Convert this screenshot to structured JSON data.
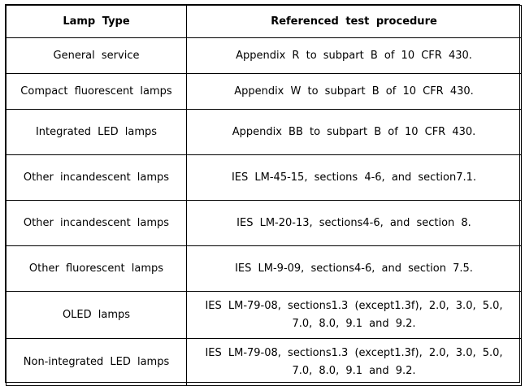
{
  "table": {
    "headers": [
      "Lamp Type",
      "Referenced test procedure"
    ],
    "rows": [
      {
        "lamp_type": "General service",
        "procedure": "Appendix R to subpart B of 10 CFR 430."
      },
      {
        "lamp_type": "Compact fluorescent lamps",
        "procedure": "Appendix W to subpart B of 10 CFR 430."
      },
      {
        "lamp_type": "Integrated LED lamps",
        "procedure": "Appendix BB to subpart B of 10 CFR 430."
      },
      {
        "lamp_type": "Other incandescent lamps",
        "procedure": "IES LM-45-15, sections 4-6, and section7.1."
      },
      {
        "lamp_type": "Other incandescent lamps",
        "procedure": "IES LM-20-13, sections4-6, and section 8."
      },
      {
        "lamp_type": "Other fluorescent lamps",
        "procedure": "IES LM-9-09, sections4-6, and section 7.5."
      },
      {
        "lamp_type": "OLED lamps",
        "procedure": "IES LM-79-08, sections1.3 (except1.3f), 2.0, 3.0, 5.0, 7.0, 8.0, 9.1 and 9.2."
      },
      {
        "lamp_type": "Non-integrated LED lamps",
        "procedure": "IES LM-79-08, sections1.3 (except1.3f), 2.0, 3.0, 5.0, 7.0, 8.0, 9.1 and 9.2."
      }
    ]
  }
}
